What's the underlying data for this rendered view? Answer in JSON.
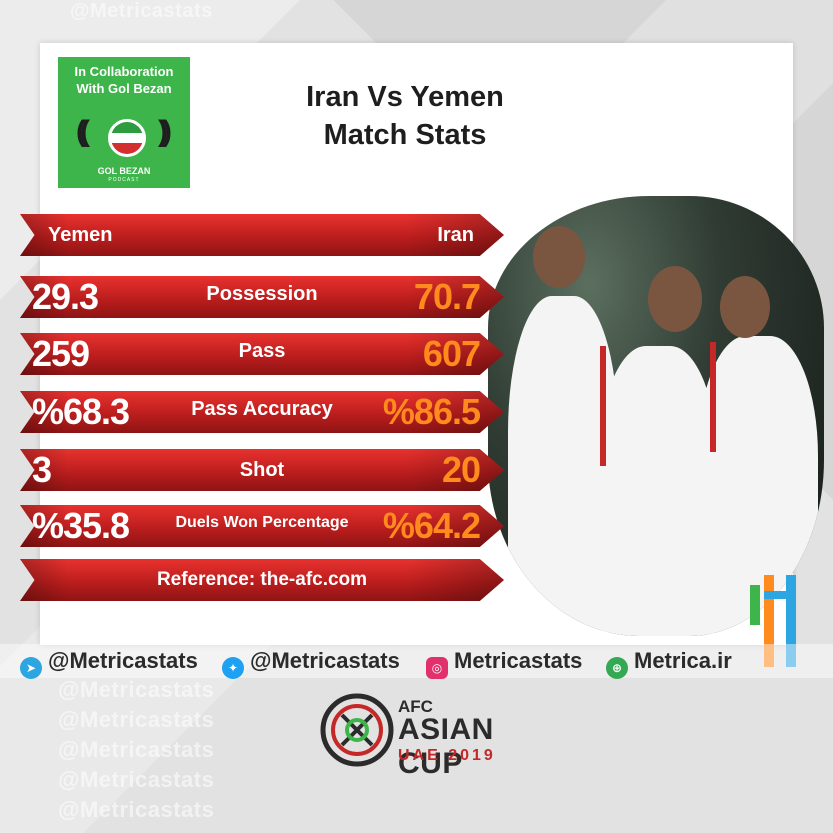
{
  "watermark": "@Metricastats",
  "collab": {
    "line1": "In Collaboration",
    "line2": "With Gol Bezan",
    "podcast_name": "GOL BEZAN",
    "podcast_sub": "PODCAST"
  },
  "title": {
    "line1": "Iran Vs Yemen",
    "line2": "Match Stats"
  },
  "header": {
    "left": "Yemen",
    "right": "Iran"
  },
  "stats": [
    {
      "label": "Possession",
      "yemen": "29.3",
      "iran": "70.7"
    },
    {
      "label": "Pass",
      "yemen": "259",
      "iran": "607"
    },
    {
      "label": "Pass Accuracy",
      "yemen": "%68.3",
      "iran": "%86.5"
    },
    {
      "label": "Shot",
      "yemen": "3",
      "iran": "20"
    },
    {
      "label": "Duels Won Percentage",
      "yemen": "%35.8",
      "iran": "%64.2"
    }
  ],
  "reference": "Reference: the-afc.com",
  "social": {
    "telegram": "@Metricastats",
    "twitter": "@Metricastats",
    "instagram": "Metricastats",
    "website": "Metrica.ir"
  },
  "colors": {
    "red": "#c62828",
    "orange": "#ff8a1e",
    "green": "#3db54a",
    "telegram": "#2ca5e0",
    "twitter": "#1da1f2",
    "instagram": "#e1306c",
    "web": "#34a853"
  },
  "afc": {
    "line1": "AFC",
    "line2": "ASIAN CUP",
    "line3": "UAE 2019"
  }
}
